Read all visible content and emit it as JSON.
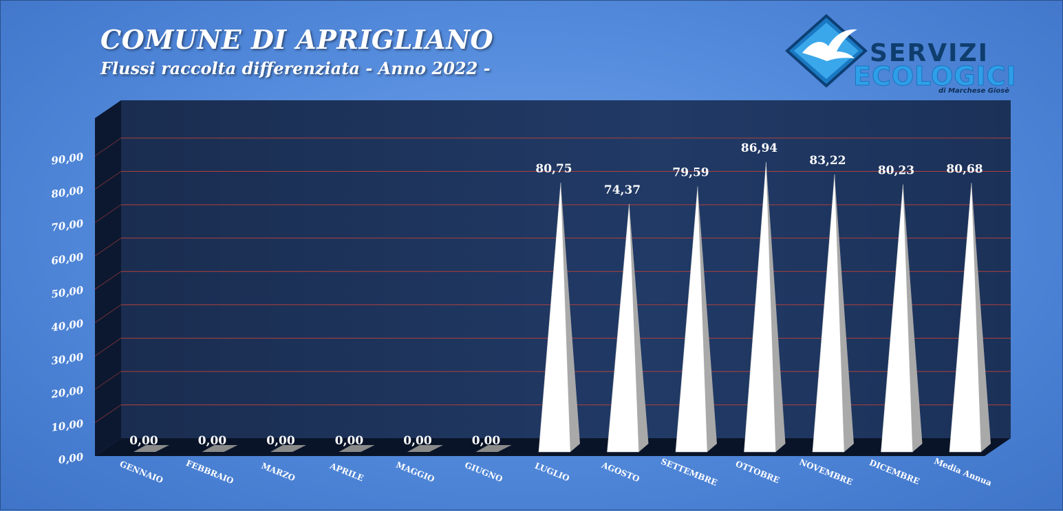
{
  "header": {
    "title": "COMUNE DI APRIGLIANO",
    "subtitle": "Flussi raccolta differenziata - Anno 2022 -"
  },
  "logo": {
    "word1": "SERVIZI",
    "word2": "ECOLOGICI",
    "word3": "di Marchese Giosè",
    "icon": "seagull-icon"
  },
  "colors": {
    "background": "#5b8fdc",
    "plot_back": "#1d3257",
    "gridline": "#b0403c",
    "cone_light": "#ffffff",
    "cone_shade": "#a9a9a9"
  },
  "chart_data": {
    "type": "bar",
    "bar_shape": "pyramid",
    "categories": [
      "GENNAIO",
      "FEBBRAIO",
      "MARZO",
      "APRILE",
      "MAGGIO",
      "GIUGNO",
      "LUGLIO",
      "AGOSTO",
      "SETTEMBRE",
      "OTTOBRE",
      "NOVEMBRE",
      "DICEMBRE",
      "Media Annua"
    ],
    "values": [
      0,
      0,
      0,
      0,
      0,
      0,
      80.75,
      74.37,
      79.59,
      86.94,
      83.22,
      80.23,
      80.68
    ],
    "data_labels": [
      "0,00",
      "0,00",
      "0,00",
      "0,00",
      "0,00",
      "0,00",
      "80,75",
      "74,37",
      "79,59",
      "86,94",
      "83,22",
      "80,23",
      "80,68"
    ],
    "yticks": [
      "0,00",
      "10,00",
      "20,00",
      "30,00",
      "40,00",
      "50,00",
      "60,00",
      "70,00",
      "80,00",
      "90,00"
    ],
    "ylim": [
      0,
      90
    ],
    "grid": true,
    "legend": "none",
    "xlabel": "",
    "ylabel": ""
  }
}
